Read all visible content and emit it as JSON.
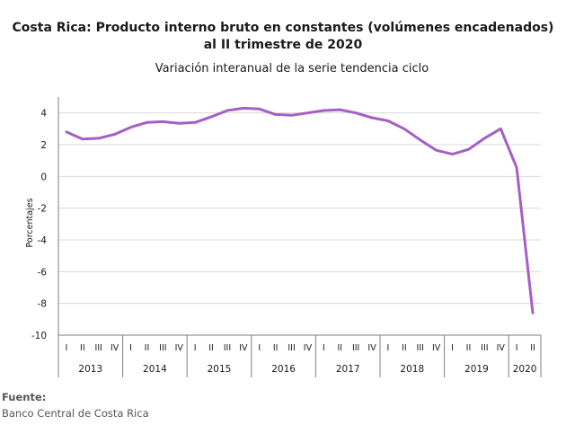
{
  "chart_data": {
    "type": "line",
    "title_line1": "Costa Rica: Producto interno bruto en constantes (volúmenes encadenados)",
    "title_line2": "al II trimestre de 2020",
    "subtitle": "Variación interanual de la serie tendencia ciclo",
    "ylabel": "Porcentajes",
    "xlabel": "",
    "ylim": [
      -10,
      5
    ],
    "yticks": [
      4,
      2,
      0,
      -2,
      -4,
      -6,
      -8,
      -10
    ],
    "grid": true,
    "legend": "none",
    "quarter_labels": [
      "I",
      "II",
      "III",
      "IV",
      "I",
      "II",
      "III",
      "IV",
      "I",
      "II",
      "III",
      "IV",
      "I",
      "II",
      "III",
      "IV",
      "I",
      "II",
      "III",
      "IV",
      "I",
      "II",
      "III",
      "IV",
      "I",
      "II",
      "III",
      "IV",
      "I",
      "II"
    ],
    "years": [
      {
        "label": "2013",
        "quarters": 4
      },
      {
        "label": "2014",
        "quarters": 4
      },
      {
        "label": "2015",
        "quarters": 4
      },
      {
        "label": "2016",
        "quarters": 4
      },
      {
        "label": "2017",
        "quarters": 4
      },
      {
        "label": "2018",
        "quarters": 4
      },
      {
        "label": "2019",
        "quarters": 4
      },
      {
        "label": "2020",
        "quarters": 2
      }
    ],
    "series": [
      {
        "color": "#a45fc6",
        "values": [
          2.8,
          2.35,
          2.4,
          2.65,
          3.1,
          3.4,
          3.45,
          3.35,
          3.4,
          3.75,
          4.15,
          4.3,
          4.25,
          3.9,
          3.85,
          4.0,
          4.15,
          4.2,
          4.0,
          3.7,
          3.5,
          3.0,
          2.3,
          1.65,
          1.4,
          1.7,
          2.4,
          3.0,
          0.55,
          -8.6
        ]
      }
    ]
  },
  "source": {
    "label": "Fuente:",
    "text": "Banco Central de Costa Rica"
  }
}
